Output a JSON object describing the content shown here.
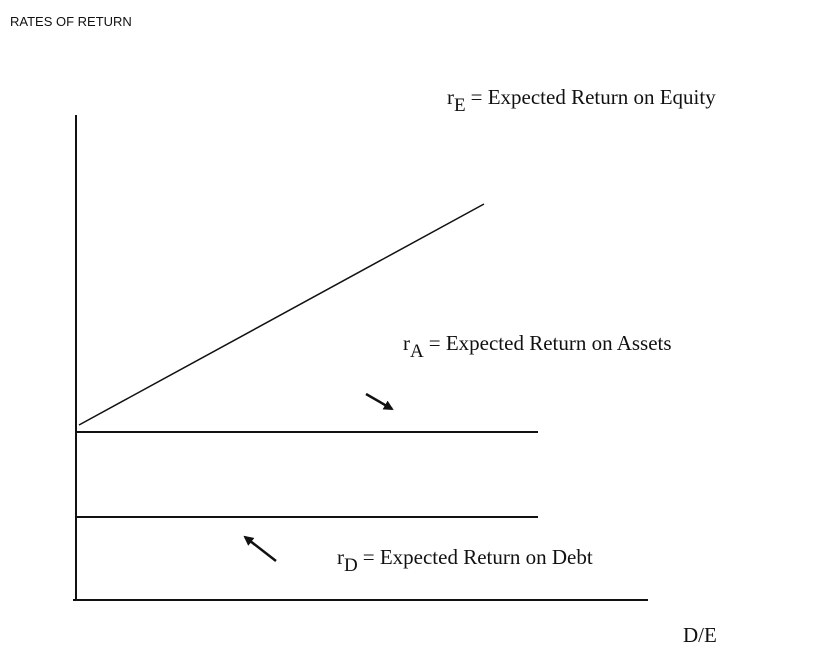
{
  "title": "RATES OF RETURN",
  "labels": {
    "equity": {
      "symbol": "r",
      "subscript": "E",
      "text": "= Expected Return on Equity"
    },
    "assets": {
      "symbol": "r",
      "subscript": "A",
      "text": "= Expected Return on Assets"
    },
    "debt": {
      "symbol": "r",
      "subscript": "D",
      "text": "= Expected Return on Debt"
    }
  },
  "x_axis_label": "D/E"
}
